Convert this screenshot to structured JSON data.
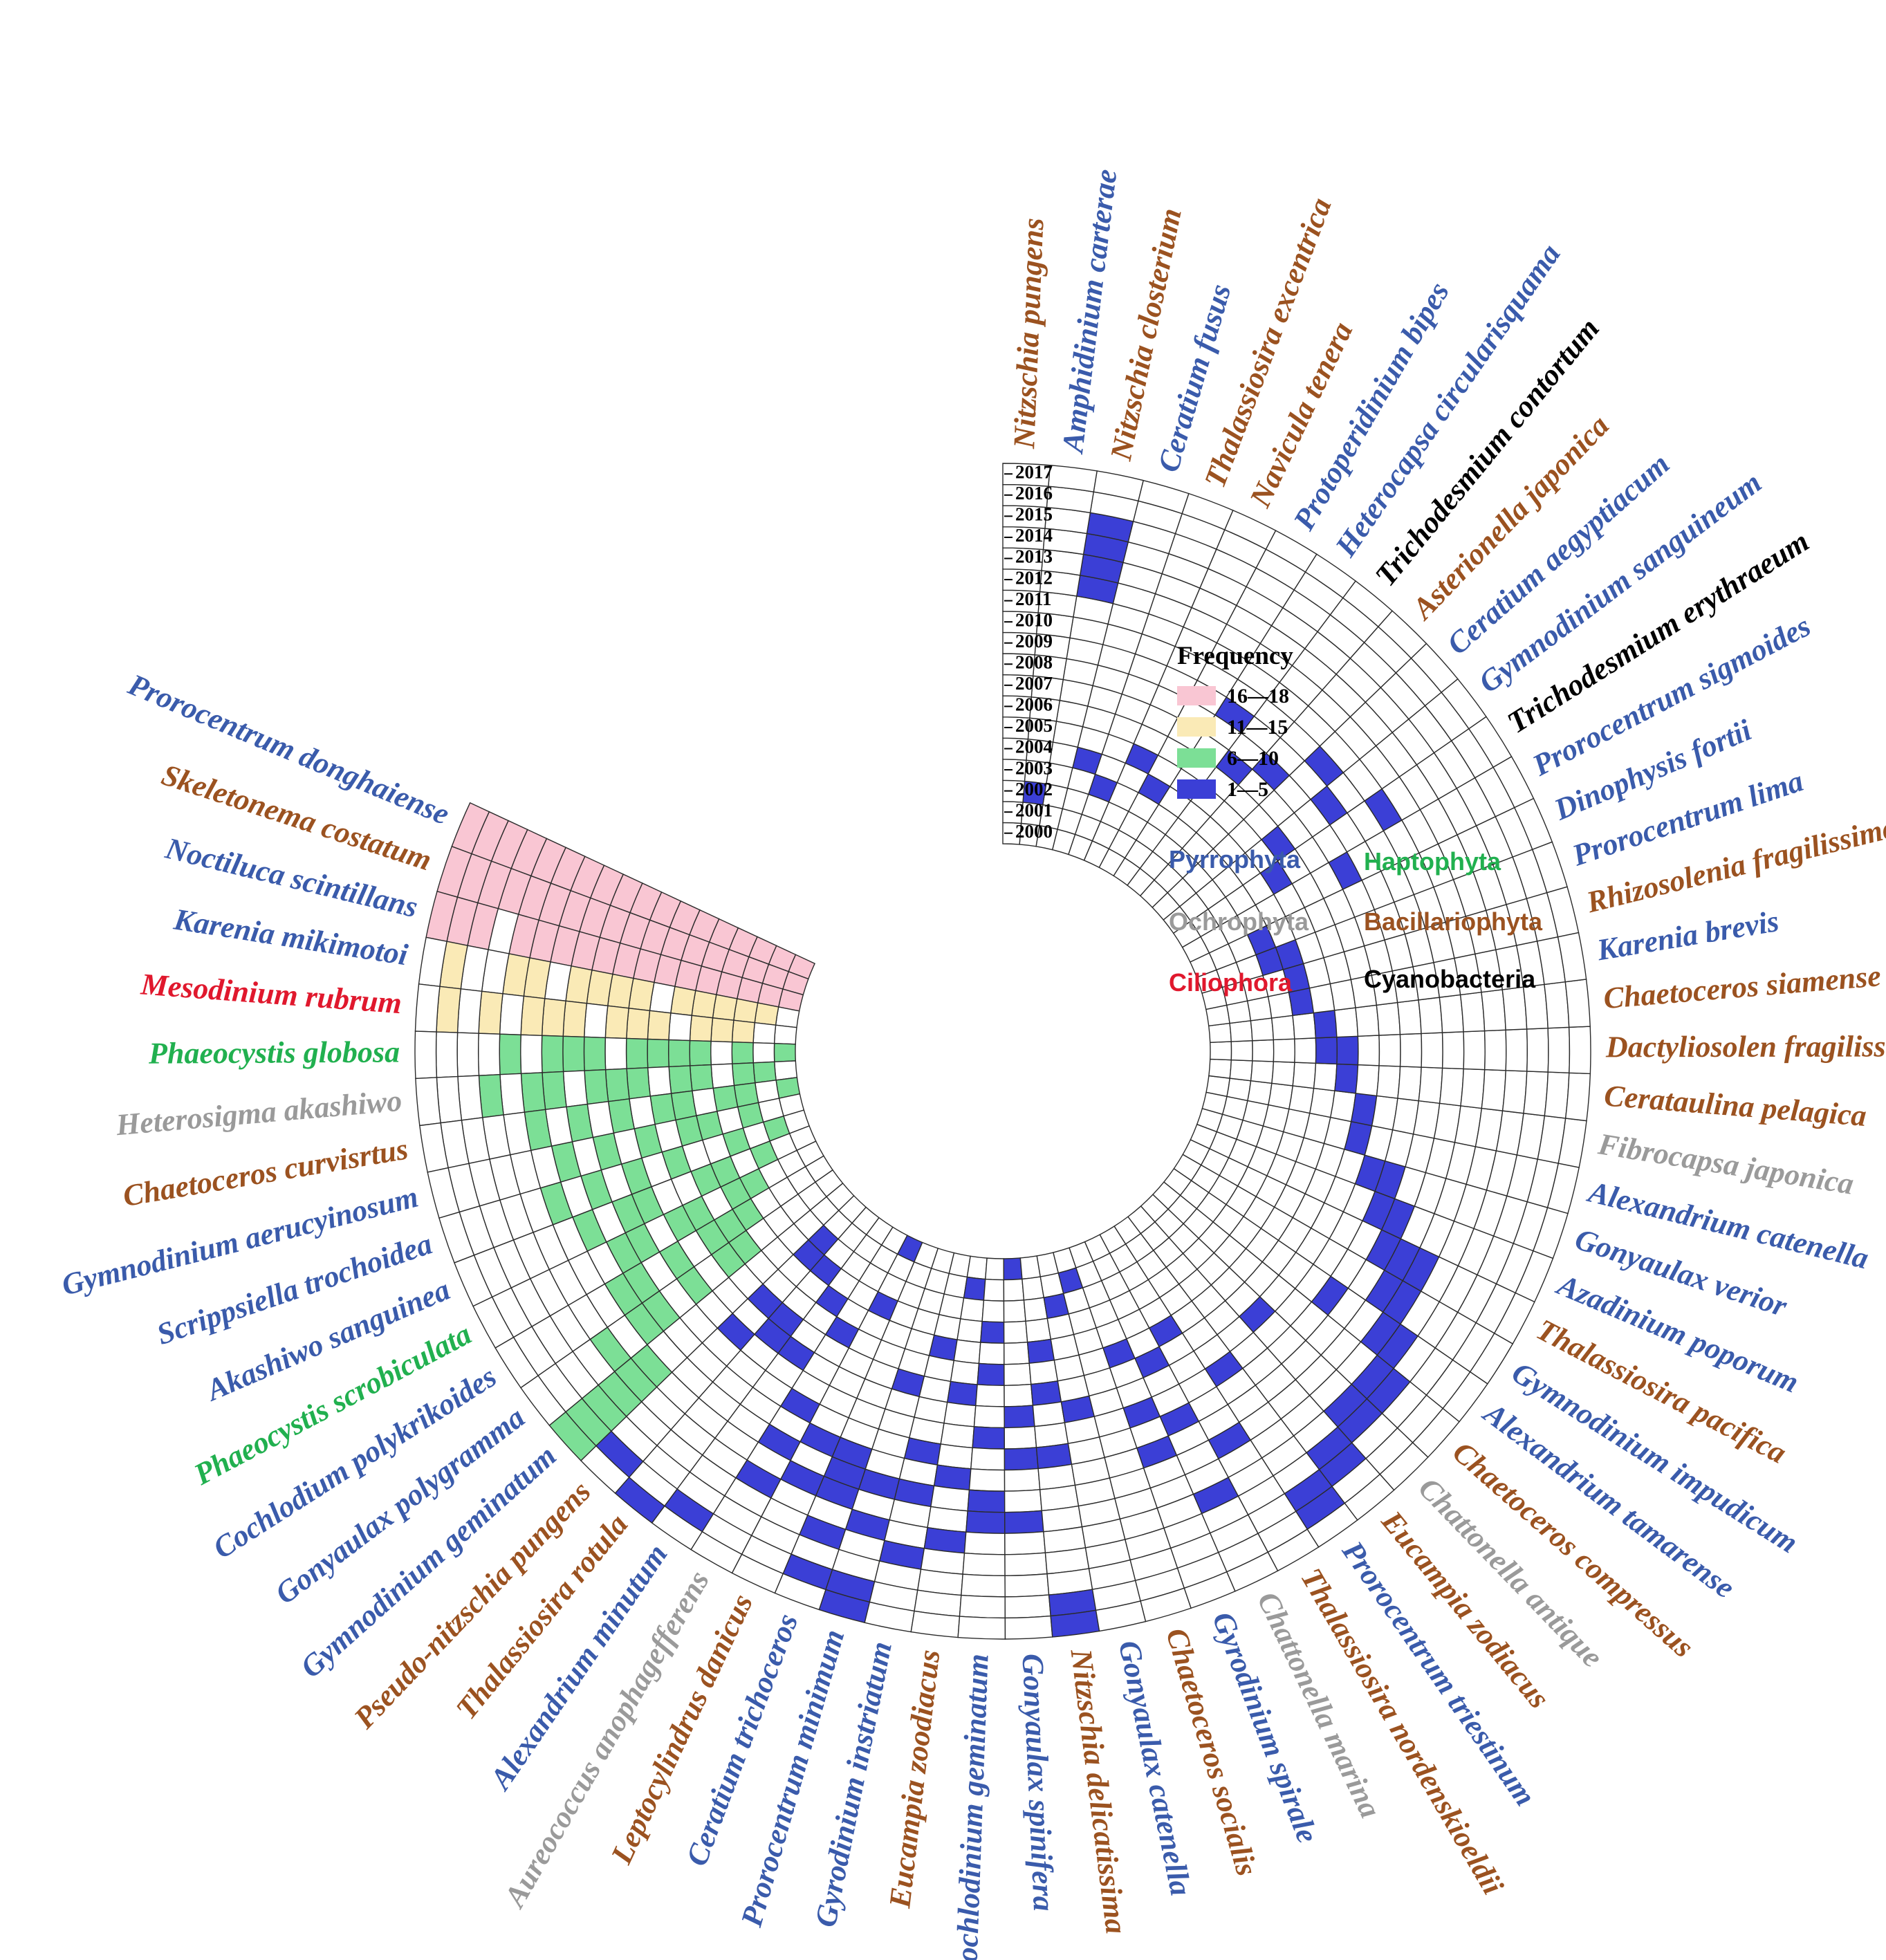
{
  "chart_data": {
    "type": "heatmap",
    "layout": "circular",
    "years": [
      "2000",
      "2001",
      "2002",
      "2003",
      "2004",
      "2005",
      "2006",
      "2007",
      "2008",
      "2009",
      "2010",
      "2011",
      "2012",
      "2013",
      "2014",
      "2015",
      "2016",
      "2017"
    ],
    "legend": {
      "title": "Frequency",
      "bins": [
        {
          "label": "16—18",
          "color": "#f9c6d3"
        },
        {
          "label": "11—15",
          "color": "#faeab6"
        },
        {
          "label": "6—10",
          "color": "#7cdf96"
        },
        {
          "label": "1—5",
          "color": "#3b3fd6"
        }
      ]
    },
    "phyla": [
      {
        "name": "Pyrrophyta",
        "color": "#3a5bab"
      },
      {
        "name": "Haptophyta",
        "color": "#21b04f"
      },
      {
        "name": "Ochrophyta",
        "color": "#9a9a9a"
      },
      {
        "name": "Bacillariophyta",
        "color": "#9b5220"
      },
      {
        "name": "Ciliophora",
        "color": "#e0182d"
      },
      {
        "name": "Cyanobacteria",
        "color": "#000000"
      }
    ],
    "species": [
      {
        "name": "Prorocentrum donghaiense",
        "phylum": "Pyrrophyta",
        "frequency": 18,
        "years": [
          "2000",
          "2001",
          "2002",
          "2003",
          "2004",
          "2005",
          "2006",
          "2007",
          "2008",
          "2009",
          "2010",
          "2011",
          "2012",
          "2013",
          "2014",
          "2015",
          "2016",
          "2017"
        ]
      },
      {
        "name": "Skeletonema costatum",
        "phylum": "Bacillariophyta",
        "frequency": 18,
        "years": [
          "2000",
          "2001",
          "2002",
          "2003",
          "2004",
          "2005",
          "2006",
          "2007",
          "2008",
          "2009",
          "2010",
          "2011",
          "2012",
          "2013",
          "2014",
          "2015",
          "2016",
          "2017"
        ]
      },
      {
        "name": "Noctiluca scintillans",
        "phylum": "Pyrrophyta",
        "frequency": 17,
        "years": [
          "2000",
          "2001",
          "2002",
          "2003",
          "2004",
          "2005",
          "2006",
          "2007",
          "2008",
          "2009",
          "2010",
          "2011",
          "2012",
          "2013",
          "2015",
          "2016",
          "2017"
        ]
      },
      {
        "name": "Karenia mikimotoi",
        "phylum": "Pyrrophyta",
        "frequency": 12,
        "years": [
          "2001",
          "2002",
          "2003",
          "2004",
          "2005",
          "2007",
          "2008",
          "2009",
          "2010",
          "2012",
          "2013",
          "2016"
        ]
      },
      {
        "name": "Mesodinium rubrum",
        "phylum": "Ciliophora",
        "frequency": 11,
        "years": [
          "2002",
          "2003",
          "2004",
          "2006",
          "2007",
          "2008",
          "2010",
          "2011",
          "2012",
          "2014",
          "2016"
        ]
      },
      {
        "name": "Phaeocystis globosa",
        "phylum": "Haptophyta",
        "frequency": 10,
        "years": [
          "2000",
          "2002",
          "2004",
          "2005",
          "2006",
          "2007",
          "2009",
          "2010",
          "2011",
          "2013"
        ]
      },
      {
        "name": "Heterosigma akashiwo",
        "phylum": "Ochrophyta",
        "frequency": 10,
        "years": [
          "2001",
          "2002",
          "2004",
          "2005",
          "2007",
          "2008",
          "2009",
          "2011",
          "2012",
          "2014"
        ]
      },
      {
        "name": "Chaetoceros curvisrtus",
        "phylum": "Bacillariophyta",
        "frequency": 8,
        "years": [
          "2000",
          "2002",
          "2003",
          "2005",
          "2006",
          "2008",
          "2010",
          "2012"
        ]
      },
      {
        "name": "Gymnodinium aerucyinosum",
        "phylum": "Pyrrophyta",
        "frequency": 6,
        "years": [
          "2002",
          "2004",
          "2005",
          "2007",
          "2009",
          "2011"
        ]
      },
      {
        "name": "Scrippsiella trochoidea",
        "phylum": "Pyrrophyta",
        "frequency": 6,
        "years": [
          "2001",
          "2003",
          "2006",
          "2008",
          "2010",
          "2012"
        ]
      },
      {
        "name": "Akashiwo sanguinea",
        "phylum": "Pyrrophyta",
        "frequency": 6,
        "years": [
          "2002",
          "2004",
          "2005",
          "2008",
          "2009",
          "2011"
        ]
      },
      {
        "name": "Phaeocystis scrobiculata",
        "phylum": "Haptophyta",
        "frequency": 6,
        "years": [
          "2003",
          "2004",
          "2006",
          "2007",
          "2009",
          "2010"
        ]
      },
      {
        "name": "Cochlodium polykrikoides",
        "phylum": "Pyrrophyta",
        "frequency": 6,
        "years": [
          "2004",
          "2005",
          "2006",
          "2008",
          "2010",
          "2011"
        ]
      },
      {
        "name": "Gonyaulax polygramma",
        "phylum": "Pyrrophyta",
        "frequency": 6,
        "years": [
          "2005",
          "2006",
          "2008",
          "2010",
          "2011",
          "2013"
        ]
      },
      {
        "name": "Gymnodinium geminatum",
        "phylum": "Pyrrophyta",
        "frequency": 6,
        "years": [
          "2012",
          "2013",
          "2014",
          "2015",
          "2016",
          "2017"
        ]
      },
      {
        "name": "Pseudo-nitzschia pungens",
        "phylum": "Bacillariophyta",
        "frequency": 5,
        "years": [
          "2002",
          "2003",
          "2006",
          "2008",
          "2016"
        ]
      },
      {
        "name": "Thalassiosira rotula",
        "phylum": "Bacillariophyta",
        "frequency": 4,
        "years": [
          "2003",
          "2006",
          "2007",
          "2017"
        ]
      },
      {
        "name": "Alexandrium minutum",
        "phylum": "Pyrrophyta",
        "frequency": 3,
        "years": [
          "2004",
          "2007",
          "2016"
        ]
      },
      {
        "name": "Aureococcus anophagefferens",
        "phylum": "Ochrophyta",
        "frequency": 4,
        "years": [
          "2005",
          "2009",
          "2011",
          "2013"
        ]
      },
      {
        "name": "Leptocylindrus danicus",
        "phylum": "Bacillariophyta",
        "frequency": 4,
        "years": [
          "2000",
          "2003",
          "2010",
          "2012"
        ]
      },
      {
        "name": "Ceratium trichoceros",
        "phylum": "Pyrrophyta",
        "frequency": 5,
        "years": [
          "2010",
          "2011",
          "2012",
          "2014",
          "2016"
        ]
      },
      {
        "name": "Prorocentrum minimum",
        "phylum": "Pyrrophyta",
        "frequency": 5,
        "years": [
          "2006",
          "2011",
          "2013",
          "2016",
          "2017"
        ]
      },
      {
        "name": "Gyrodinium instriatum",
        "phylum": "Pyrrophyta",
        "frequency": 4,
        "years": [
          "2004",
          "2009",
          "2011",
          "2014"
        ]
      },
      {
        "name": "Eucampia zoodiacus",
        "phylum": "Bacillariophyta",
        "frequency": 4,
        "years": [
          "2001",
          "2006",
          "2010",
          "2013"
        ]
      },
      {
        "name": "Cochlodinium geminatum",
        "phylum": "Pyrrophyta",
        "frequency": 5,
        "years": [
          "2003",
          "2005",
          "2008",
          "2011",
          "2012"
        ]
      },
      {
        "name": "Gonyaulax spinifera",
        "phylum": "Pyrrophyta",
        "frequency": 4,
        "years": [
          "2000",
          "2007",
          "2009",
          "2012"
        ]
      },
      {
        "name": "Nitzschia delicatissima",
        "phylum": "Bacillariophyta",
        "frequency": 5,
        "years": [
          "2004",
          "2006",
          "2009",
          "2016",
          "2017"
        ]
      },
      {
        "name": "Gonyaulax catenella",
        "phylum": "Pyrrophyta",
        "frequency": 2,
        "years": [
          "2002",
          "2007"
        ]
      },
      {
        "name": "Chaetoceros socialis",
        "phylum": "Bacillariophyta",
        "frequency": 1,
        "years": [
          "2001"
        ]
      },
      {
        "name": "Gyrodinium spirale",
        "phylum": "Pyrrophyta",
        "frequency": 3,
        "years": [
          "2005",
          "2008",
          "2010"
        ]
      },
      {
        "name": "Chattonella marina",
        "phylum": "Ochrophyta",
        "frequency": 3,
        "years": [
          "2006",
          "2009",
          "2013"
        ]
      },
      {
        "name": "Thalassiosira nordenskioeldii",
        "phylum": "Bacillariophyta",
        "frequency": 2,
        "years": [
          "2005",
          "2011"
        ]
      },
      {
        "name": "Prorocentrum triestinum",
        "phylum": "Pyrrophyta",
        "frequency": 3,
        "years": [
          "2008",
          "2015",
          "2016"
        ]
      },
      {
        "name": "Eucampia zodiacus",
        "phylum": "Bacillariophyta",
        "frequency": 2,
        "years": [
          "2014",
          "2015"
        ]
      },
      {
        "name": "Chattonella antique",
        "phylum": "Ochrophyta",
        "frequency": 3,
        "years": [
          "2007",
          "2013",
          "2014"
        ]
      },
      {
        "name": "Chaetoceros compressus",
        "phylum": "Bacillariophyta",
        "frequency": 2,
        "years": [
          "2013",
          "2014"
        ]
      },
      {
        "name": "Alexandrium tamarense",
        "phylum": "Pyrrophyta",
        "frequency": 3,
        "years": [
          "2009",
          "2012",
          "2013"
        ]
      },
      {
        "name": "Gymnodinium impudicum",
        "phylum": "Pyrrophyta",
        "frequency": 2,
        "years": [
          "2011",
          "2012"
        ]
      },
      {
        "name": "Thalassiosira pacifica",
        "phylum": "Bacillariophyta",
        "frequency": 3,
        "years": [
          "2010",
          "2011",
          "2012"
        ]
      },
      {
        "name": "Azadinium poporum",
        "phylum": "Pyrrophyta",
        "frequency": 2,
        "years": [
          "2009",
          "2010"
        ]
      },
      {
        "name": "Gonyaulax verior",
        "phylum": "Pyrrophyta",
        "frequency": 2,
        "years": [
          "2008",
          "2009"
        ]
      },
      {
        "name": "Alexandrium catenella",
        "phylum": "Pyrrophyta",
        "frequency": 1,
        "years": [
          "2007"
        ]
      },
      {
        "name": "Fibrocapsa japonica",
        "phylum": "Ochrophyta",
        "frequency": 1,
        "years": [
          "2007"
        ]
      },
      {
        "name": "Cerataulina pelagica",
        "phylum": "Bacillariophyta",
        "frequency": 1,
        "years": [
          "2006"
        ]
      },
      {
        "name": "Dactyliosolen fragilissimus",
        "phylum": "Bacillariophyta",
        "frequency": 2,
        "years": [
          "2005",
          "2006"
        ]
      },
      {
        "name": "Chaetoceros siamense",
        "phylum": "Bacillariophyta",
        "frequency": 1,
        "years": [
          "2005"
        ]
      },
      {
        "name": "Karenia brevis",
        "phylum": "Pyrrophyta",
        "frequency": 1,
        "years": [
          "2004"
        ]
      },
      {
        "name": "Rhizosolenia fragilissima",
        "phylum": "Bacillariophyta",
        "frequency": 1,
        "years": [
          "2004"
        ]
      },
      {
        "name": "Prorocentrum lima",
        "phylum": "Pyrrophyta",
        "frequency": 2,
        "years": [
          "2003",
          "2004"
        ]
      },
      {
        "name": "Dinophysis fortii",
        "phylum": "Pyrrophyta",
        "frequency": 1,
        "years": [
          "2003"
        ]
      },
      {
        "name": "Prorocentrum sigmoides",
        "phylum": "Pyrrophyta",
        "frequency": 1,
        "years": [
          "2008"
        ]
      },
      {
        "name": "Trichodesmium erythraeum",
        "phylum": "Cyanobacteria",
        "frequency": 2,
        "years": [
          "2005",
          "2011"
        ]
      },
      {
        "name": "Gymnodinium sanguineum",
        "phylum": "Pyrrophyta",
        "frequency": 2,
        "years": [
          "2006",
          "2009"
        ]
      },
      {
        "name": "Ceratium aegyptiacum",
        "phylum": "Pyrrophyta",
        "frequency": 1,
        "years": [
          "2010"
        ]
      },
      {
        "name": "Asterionella japonica",
        "phylum": "Bacillariophyta",
        "frequency": 1,
        "years": [
          "2008"
        ]
      },
      {
        "name": "Trichodesmium contortum",
        "phylum": "Cyanobacteria",
        "frequency": 1,
        "years": [
          "2007"
        ]
      },
      {
        "name": "Heterocapsa circularisquama",
        "phylum": "Pyrrophyta",
        "frequency": 1,
        "years": [
          "2009"
        ]
      },
      {
        "name": "Protoperidinium bipes",
        "phylum": "Pyrrophyta",
        "frequency": 1,
        "years": [
          "2004"
        ]
      },
      {
        "name": "Navicula tenera",
        "phylum": "Bacillariophyta",
        "frequency": 1,
        "years": [
          "2005"
        ]
      },
      {
        "name": "Thalassiosira excentrica",
        "phylum": "Bacillariophyta",
        "frequency": 1,
        "years": [
          "2003"
        ]
      },
      {
        "name": "Ceratium fusus",
        "phylum": "Pyrrophyta",
        "frequency": 1,
        "years": [
          "2004"
        ]
      },
      {
        "name": "Nitzschia closterium",
        "phylum": "Bacillariophyta",
        "frequency": 4,
        "years": [
          "2012",
          "2013",
          "2014",
          "2015"
        ]
      },
      {
        "name": "Amphidinium carterae",
        "phylum": "Pyrrophyta",
        "frequency": 1,
        "years": [
          "2002"
        ]
      },
      {
        "name": "Nitzschia pungens",
        "phylum": "Bacillariophyta",
        "frequency": 0,
        "years": []
      }
    ]
  }
}
